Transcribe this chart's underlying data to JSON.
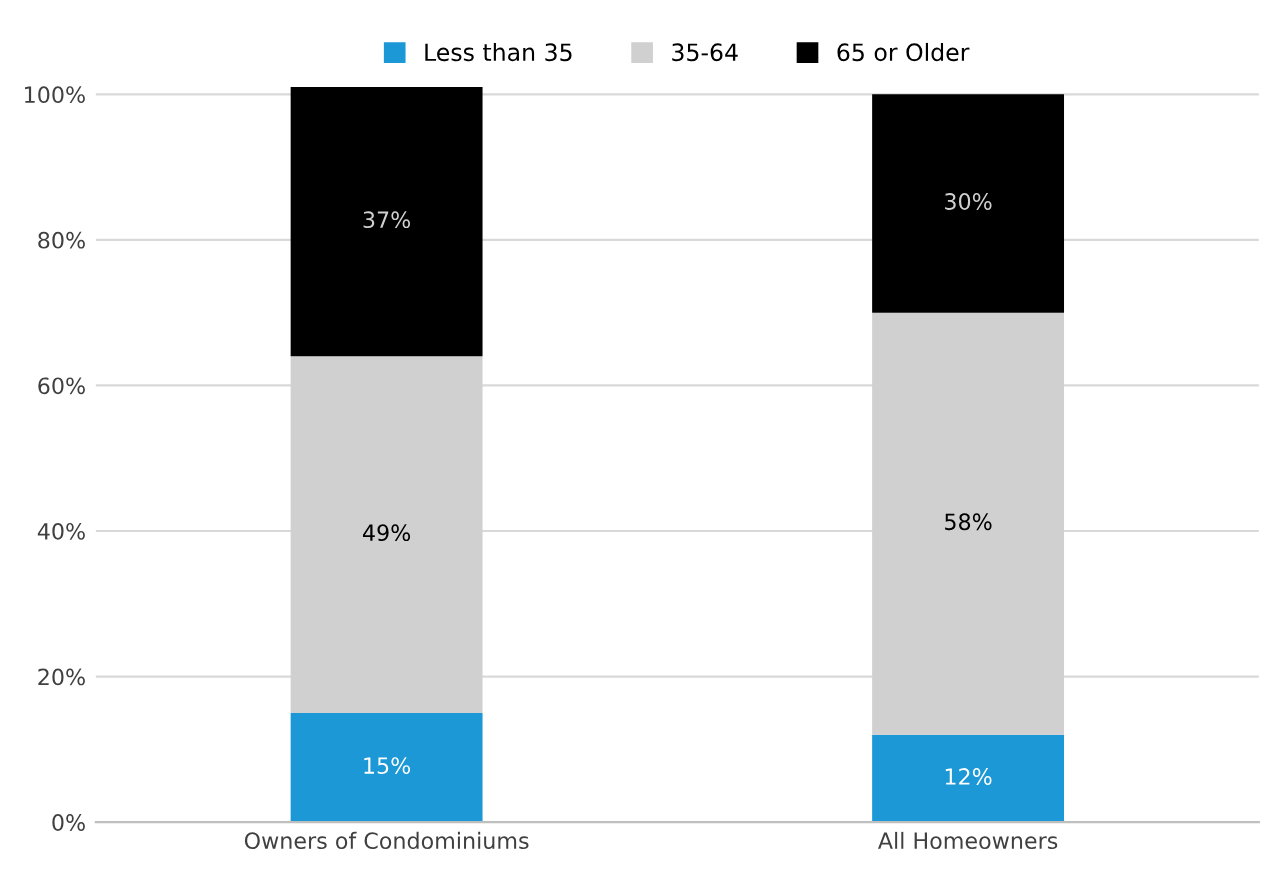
{
  "chart_data": {
    "type": "bar",
    "stacked": true,
    "categories": [
      "Owners of Condominiums",
      "All Homeowners"
    ],
    "series": [
      {
        "name": "Less than 35",
        "color": "#1b98d5",
        "values": [
          15,
          12
        ],
        "value_labels": [
          "15%",
          "12%"
        ]
      },
      {
        "name": "35-64",
        "color": "#d0d0d0",
        "values": [
          49,
          58
        ],
        "value_labels": [
          "49%",
          "58%"
        ]
      },
      {
        "name": "65 or Older",
        "color": "#000000",
        "values": [
          37,
          30
        ],
        "value_labels": [
          "37%",
          "30%"
        ]
      }
    ],
    "ylim": [
      0,
      101
    ],
    "yticks": [
      {
        "value": 0,
        "label": "0%"
      },
      {
        "value": 20,
        "label": "20%"
      },
      {
        "value": 40,
        "label": "40%"
      },
      {
        "value": 60,
        "label": "60%"
      },
      {
        "value": 80,
        "label": "80%"
      },
      {
        "value": 100,
        "label": "100%"
      }
    ],
    "grid": "y",
    "legend": "top"
  }
}
